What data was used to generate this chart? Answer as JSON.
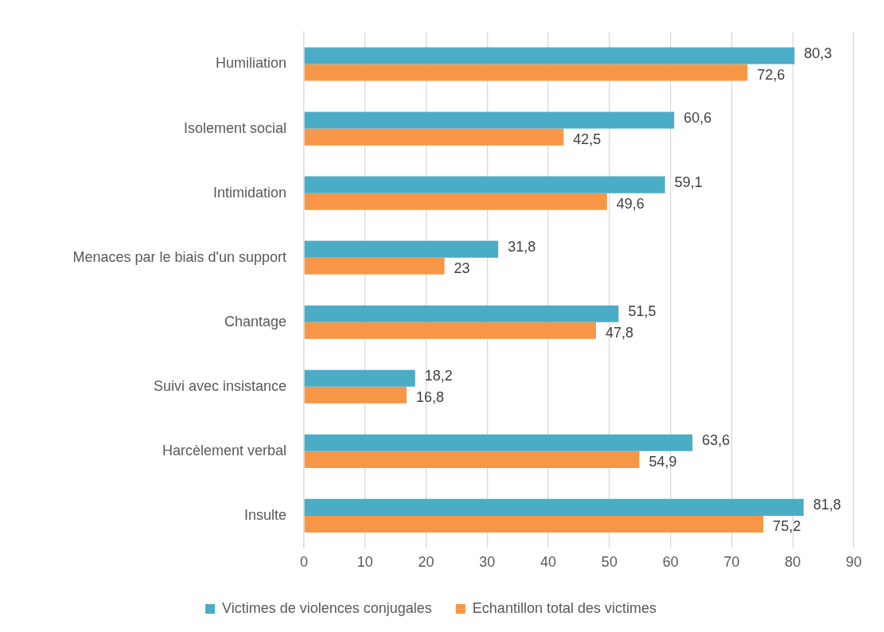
{
  "chart_data": {
    "type": "bar",
    "orientation": "horizontal",
    "categories": [
      "Humiliation",
      "Isolement social",
      "Intimidation",
      "Menaces par le biais d'un support",
      "Chantage",
      "Suivi avec insistance",
      "Harcèlement verbal",
      "Insulte"
    ],
    "series": [
      {
        "name": "Victimes de violences conjugales",
        "color": "#4bacc6",
        "values": [
          80.3,
          60.6,
          59.1,
          31.8,
          51.5,
          18.2,
          63.6,
          81.8
        ],
        "value_labels": [
          "80,3",
          "60,6",
          "59,1",
          "31,8",
          "51,5",
          "18,2",
          "63,6",
          "81,8"
        ]
      },
      {
        "name": "Echantillon total des victimes",
        "color": "#f79646",
        "values": [
          72.6,
          42.5,
          49.6,
          23,
          47.8,
          16.8,
          54.9,
          75.2
        ],
        "value_labels": [
          "72,6",
          "42,5",
          "49,6",
          "23",
          "47,8",
          "16,8",
          "54,9",
          "75,2"
        ]
      }
    ],
    "xlim": [
      0,
      90
    ],
    "xticks": [
      0,
      10,
      20,
      30,
      40,
      50,
      60,
      70,
      80,
      90
    ],
    "grid": "x",
    "legend": "bottom"
  }
}
